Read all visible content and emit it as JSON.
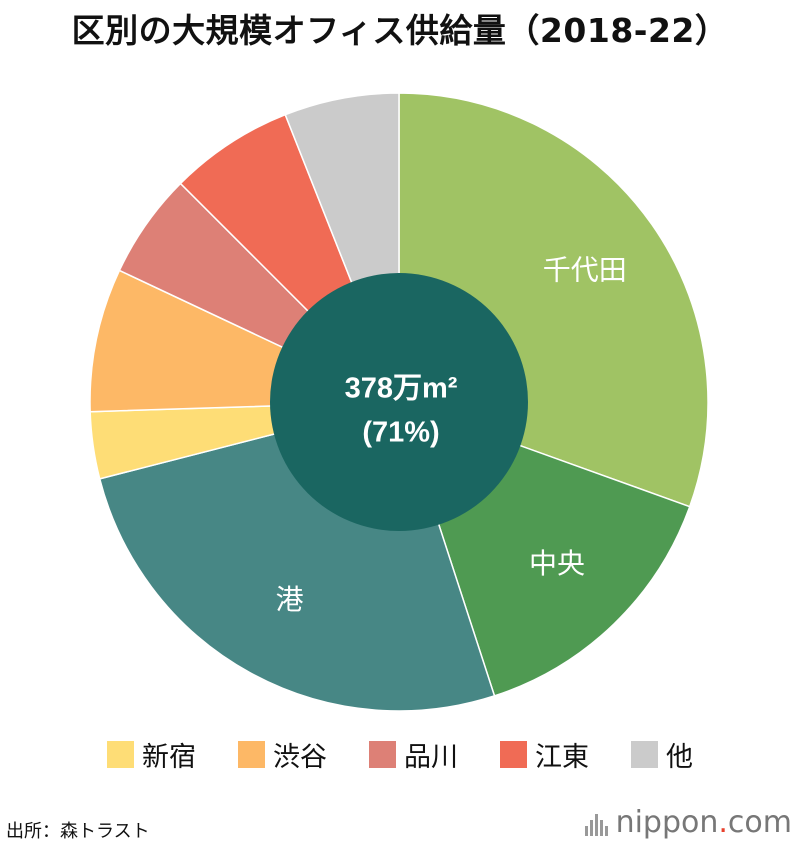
{
  "title": "区別の大規模オフィス供給量（2018-22）",
  "chart_data": {
    "type": "pie",
    "title": "区別の大規模オフィス供給量（2018-22）",
    "unit": "%",
    "slices": [
      {
        "label": "千代田",
        "value": 30.5,
        "color": "#a0c364",
        "show_label": true
      },
      {
        "label": "中央",
        "value": 14.5,
        "color": "#4f9a52",
        "show_label": true
      },
      {
        "label": "港",
        "value": 26.0,
        "color": "#478785",
        "show_label": true
      },
      {
        "label": "新宿",
        "value": 3.5,
        "color": "#fedd76",
        "show_label": false
      },
      {
        "label": "渋谷",
        "value": 7.5,
        "color": "#fdb866",
        "show_label": false
      },
      {
        "label": "品川",
        "value": 5.5,
        "color": "#dd8076",
        "show_label": false
      },
      {
        "label": "江東",
        "value": 6.5,
        "color": "#f06b55",
        "show_label": false
      },
      {
        "label": "他",
        "value": 6.0,
        "color": "#cbcbcb",
        "show_label": false
      }
    ],
    "center_label": {
      "line1": "378万m²",
      "line2": "(71%)",
      "color": "#1a6661",
      "covers": [
        "千代田",
        "中央",
        "港"
      ]
    },
    "legend": [
      "新宿",
      "渋谷",
      "品川",
      "江東",
      "他"
    ],
    "legend_placement": "bottom"
  },
  "legend_items": [
    {
      "label": "新宿",
      "color": "#fedd76"
    },
    {
      "label": "渋谷",
      "color": "#fdb866"
    },
    {
      "label": "品川",
      "color": "#dd8076"
    },
    {
      "label": "江東",
      "color": "#f06b55"
    },
    {
      "label": "他",
      "color": "#cbcbcb"
    }
  ],
  "source": "出所：森トラスト",
  "logo": {
    "name": "nippon",
    "dot": ".",
    "suffix": "com"
  }
}
